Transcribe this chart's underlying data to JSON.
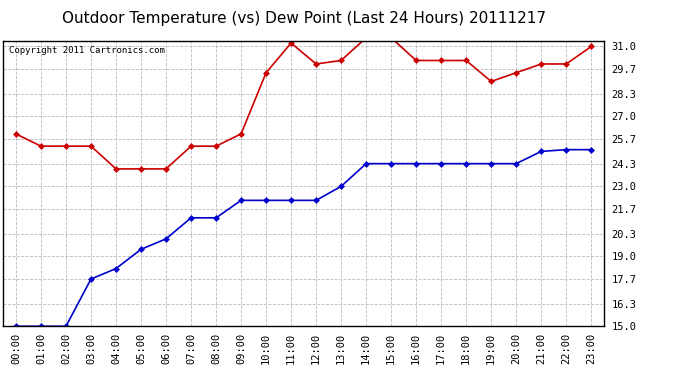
{
  "title": "Outdoor Temperature (vs) Dew Point (Last 24 Hours) 20111217",
  "copyright": "Copyright 2011 Cartronics.com",
  "x_labels": [
    "00:00",
    "01:00",
    "02:00",
    "03:00",
    "04:00",
    "05:00",
    "06:00",
    "07:00",
    "08:00",
    "09:00",
    "10:00",
    "11:00",
    "12:00",
    "13:00",
    "14:00",
    "15:00",
    "16:00",
    "17:00",
    "18:00",
    "19:00",
    "20:00",
    "21:00",
    "22:00",
    "23:00"
  ],
  "temp_blue": [
    15.0,
    15.0,
    15.0,
    17.7,
    18.3,
    19.4,
    20.0,
    21.2,
    21.2,
    22.2,
    22.2,
    22.2,
    22.2,
    23.0,
    24.3,
    24.3,
    24.3,
    24.3,
    24.3,
    24.3,
    24.3,
    25.0,
    25.1,
    25.1
  ],
  "dew_red": [
    26.0,
    25.3,
    25.3,
    25.3,
    24.0,
    24.0,
    24.0,
    25.3,
    25.3,
    26.0,
    29.5,
    31.2,
    30.0,
    30.2,
    31.5,
    31.5,
    30.2,
    30.2,
    30.2,
    29.0,
    29.5,
    30.0,
    30.0,
    31.0
  ],
  "ylim_min": 15.0,
  "ylim_max": 31.3,
  "yticks": [
    15.0,
    16.3,
    17.7,
    19.0,
    20.3,
    21.7,
    23.0,
    24.3,
    25.7,
    27.0,
    28.3,
    29.7,
    31.0
  ],
  "line_color_blue": "#0000cc",
  "line_color_red": "#cc0000",
  "marker": "D",
  "marker_size": 3,
  "background_color": "#ffffff",
  "grid_color": "#bbbbbb",
  "title_fontsize": 11,
  "tick_fontsize": 7.5,
  "copyright_fontsize": 6.5
}
